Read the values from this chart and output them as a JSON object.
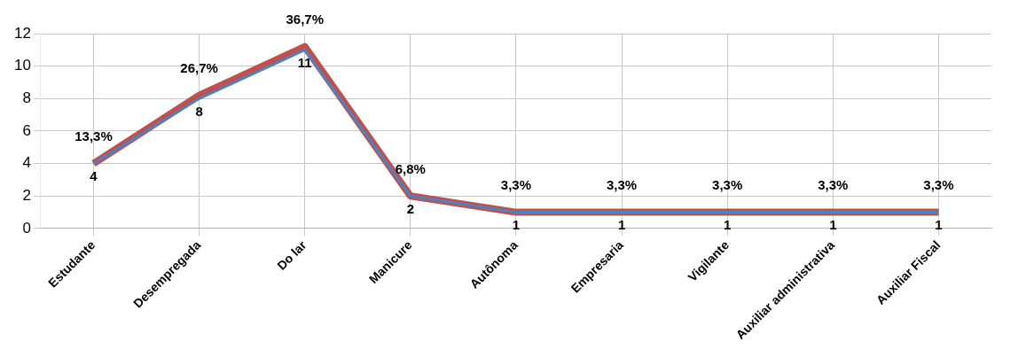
{
  "chart_data": {
    "type": "line",
    "categories": [
      "Estudante",
      "Desempregada",
      "Do lar",
      "Manicure",
      "Autônoma",
      "Empresaria",
      "Vigilante",
      "Auxiliar administrativa",
      "Auxiliar Fiscal"
    ],
    "series": [
      {
        "color": "#4f81bd",
        "values": [
          4,
          8,
          11,
          2,
          1,
          1,
          1,
          1,
          1
        ],
        "value_labels": [
          "4",
          "8",
          "11",
          "2",
          "1",
          "1",
          "1",
          "1",
          "1"
        ]
      },
      {
        "color": "#c0504d",
        "values": [
          4,
          8.2,
          11.2,
          2,
          1,
          1,
          1,
          1,
          1
        ]
      }
    ],
    "annotations": [
      {
        "text": "13,3%",
        "x": "Estudante",
        "y": 4
      },
      {
        "text": "26,7%",
        "x": "Desempregada",
        "y": 8.2
      },
      {
        "text": "36,7%",
        "x": "Do lar",
        "y": 11.2
      },
      {
        "text": "6,8%",
        "x": "Manicure",
        "y": 2
      },
      {
        "text": "3,3%",
        "x": "Autônoma",
        "y": 1
      },
      {
        "text": "3,3%",
        "x": "Empresaria",
        "y": 1
      },
      {
        "text": "3,3%",
        "x": "Vigilante",
        "y": 1
      },
      {
        "text": "3,3%",
        "x": "Auxiliar administrativa",
        "y": 1
      },
      {
        "text": "3,3%",
        "x": "Auxiliar Fiscal",
        "y": 1
      }
    ],
    "ylim": [
      0,
      12
    ],
    "yticks": [
      0,
      2,
      4,
      6,
      8,
      10,
      12
    ],
    "grid": true,
    "legend": false,
    "marker": "none",
    "line_style": "solid"
  }
}
